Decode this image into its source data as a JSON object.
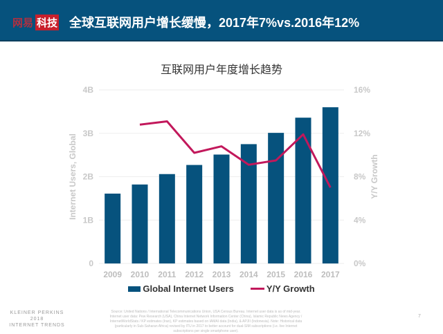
{
  "header": {
    "logo_part1": "网易",
    "logo_part2": "科技",
    "title": "全球互联网用户增长缓慢，2017年7%vs.2016年12%"
  },
  "colors": {
    "header_bg": "#06527d",
    "bar": "#06527d",
    "line": "#c2185b"
  },
  "chart_data": {
    "type": "bar+line",
    "title": "互联网用户年度增长趋势",
    "categories": [
      "2009",
      "2010",
      "2011",
      "2012",
      "2013",
      "2014",
      "2015",
      "2016",
      "2017"
    ],
    "series": [
      {
        "name": "Global Internet Users",
        "type": "bar",
        "axis": "left",
        "values": [
          1.61,
          1.82,
          2.06,
          2.27,
          2.51,
          2.75,
          3.01,
          3.36,
          3.6
        ]
      },
      {
        "name": "Y/Y Growth",
        "type": "line",
        "axis": "right",
        "values": [
          null,
          12.8,
          13.1,
          10.2,
          10.8,
          9.1,
          9.5,
          11.9,
          7.0
        ]
      }
    ],
    "ylabel": "Internet Users, Global",
    "y2label": "Y/Y Growth",
    "ylim": [
      0,
      4
    ],
    "y2lim": [
      0,
      16
    ],
    "yticks": [
      "0",
      "1B",
      "2B",
      "3B",
      "4B"
    ],
    "y2ticks": [
      "0%",
      "4%",
      "8%",
      "12%",
      "16%"
    ],
    "grid": true,
    "legend": "bottom"
  },
  "footer": {
    "brand_line1": "KLEINER PERKINS",
    "brand_line2": "2018",
    "brand_line3": "INTERNET TRENDS",
    "source": "Source: United Nations / International Telecommunications Union, USA Census Bureau. Internet user data is as of mid-year. Internet user data: Pew Research (USA), China Internet Network Information Center (China), Islamic Republic News Agency / InternetWorldStats / KP estimates (Iran), KP estimates based on IAMAI data (India), & APJII (Indonesia). Note: Historical data (particularly in Sub-Saharan Africa) revised by ITU in 2017 to better account for dual-SIM subscriptions (i.e. live Internet subscriptions per single smartphone user).",
    "page": "7"
  }
}
